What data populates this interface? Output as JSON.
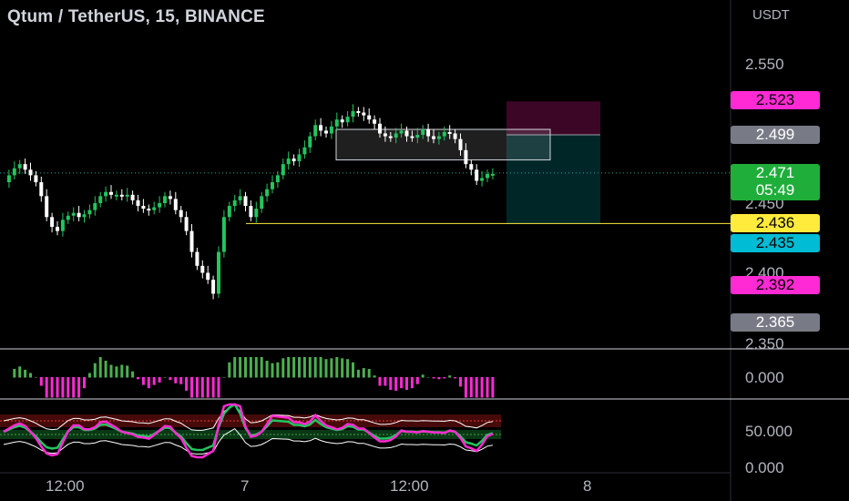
{
  "header": {
    "title": "Qtum / TetherUS, 15, BINANCE",
    "currency": "USDT"
  },
  "colors": {
    "up": "#26a69a",
    "down": "#ef5350",
    "candle_up": "#22c55e",
    "candle_down": "#ffffff",
    "pink": "#ff2ad4",
    "yellow": "#ffeb3b",
    "cyan": "#00bcd4",
    "gray": "#787b86",
    "green_tag": "#1fae3a"
  },
  "price_axis": {
    "ticks": [
      "2.550",
      "2.450",
      "2.400",
      "2.350"
    ]
  },
  "price_tags": {
    "stop": "2.523",
    "target_entry": "2.499",
    "last": "2.471",
    "countdown": "05:49",
    "line": "2.436",
    "tp": "2.435",
    "low": "2.392",
    "min": "2.365"
  },
  "indicator1_axis": {
    "label": "0.000"
  },
  "indicator2_axis": {
    "labels": [
      "50.000",
      "0.000"
    ]
  },
  "time_axis": {
    "labels": [
      "12:00",
      "7",
      "12:00",
      "8"
    ]
  },
  "chart_data": {
    "type": "candlestick",
    "title": "Qtum / TetherUS, 15, BINANCE",
    "ylabel": "USDT",
    "ylim": [
      2.345,
      2.575
    ],
    "x_labels": [
      "12:00",
      "7",
      "12:00",
      "8"
    ],
    "close_path": [
      2.465,
      2.47,
      2.475,
      2.478,
      2.474,
      2.47,
      2.465,
      2.455,
      2.44,
      2.433,
      2.43,
      2.438,
      2.441,
      2.443,
      2.44,
      2.442,
      2.445,
      2.45,
      2.455,
      2.458,
      2.456,
      2.456,
      2.455,
      2.456,
      2.452,
      2.448,
      2.446,
      2.445,
      2.447,
      2.45,
      2.455,
      2.453,
      2.445,
      2.44,
      2.43,
      2.415,
      2.405,
      2.4,
      2.395,
      2.385,
      2.415,
      2.44,
      2.448,
      2.452,
      2.455,
      2.448,
      2.44,
      2.446,
      2.455,
      2.46,
      2.465,
      2.47,
      2.478,
      2.482,
      2.48,
      2.485,
      2.49,
      2.498,
      2.506,
      2.502,
      2.5,
      2.505,
      2.51,
      2.508,
      2.512,
      2.516,
      2.515,
      2.513,
      2.51,
      2.507,
      2.5,
      2.498,
      2.497,
      2.5,
      2.502,
      2.498,
      2.497,
      2.499,
      2.503,
      2.498,
      2.496,
      2.498,
      2.501,
      2.5,
      2.496,
      2.488,
      2.478,
      2.474,
      2.466,
      2.468,
      2.471,
      2.471
    ],
    "price_levels": {
      "stop": 2.523,
      "entry": 2.499,
      "last": 2.471,
      "horizontal_line": 2.436,
      "take_profit": 2.435
    },
    "rectangle": {
      "top": 2.499,
      "bottom": 2.481
    },
    "indicator1": {
      "type": "histogram",
      "baseline_label": "0.000"
    },
    "indicator2": {
      "type": "oscillator",
      "labels": [
        "50.000",
        "0.000"
      ]
    }
  }
}
